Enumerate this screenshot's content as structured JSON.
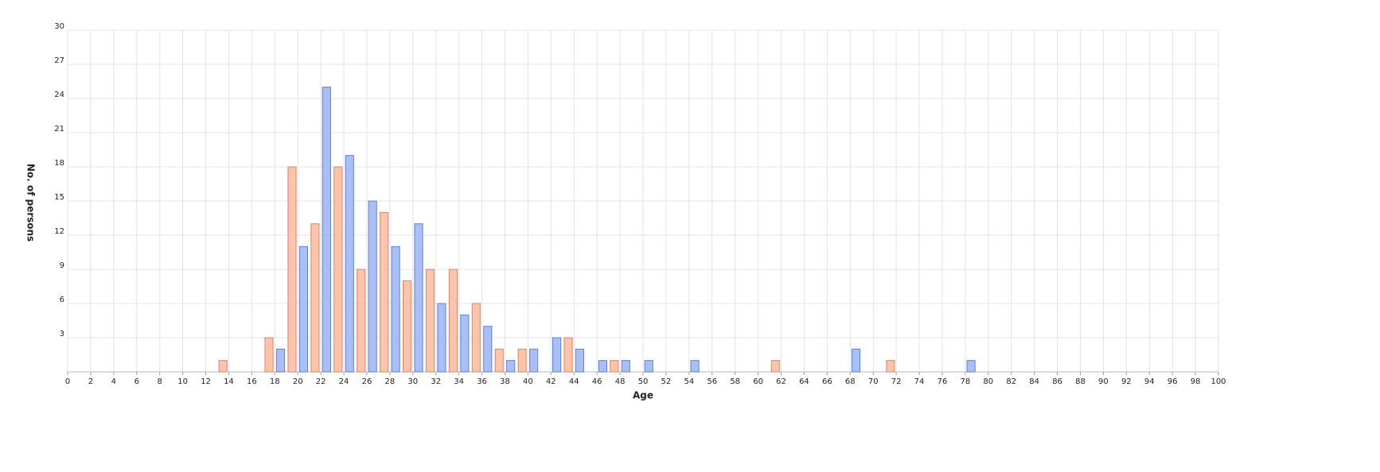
{
  "chart_data": {
    "type": "bar",
    "xlabel": "Age",
    "ylabel": "No. of persons",
    "xlim": [
      0,
      100
    ],
    "xticks": [
      0,
      2,
      4,
      6,
      8,
      10,
      12,
      14,
      16,
      18,
      20,
      22,
      24,
      26,
      28,
      30,
      32,
      34,
      36,
      38,
      40,
      42,
      44,
      46,
      48,
      50,
      52,
      54,
      56,
      58,
      60,
      62,
      64,
      66,
      68,
      70,
      72,
      74,
      76,
      78,
      80,
      82,
      84,
      86,
      88,
      90,
      92,
      94,
      96,
      98,
      100
    ],
    "ylim": [
      0,
      30
    ],
    "yticks": [
      3,
      6,
      9,
      12,
      15,
      18,
      21,
      24,
      27,
      30
    ],
    "grid": true,
    "series": [
      {
        "color": "#aabff5",
        "x": [
          18,
          20,
          22,
          24,
          26,
          28,
          30,
          32,
          34,
          36,
          38,
          40,
          42,
          44,
          46,
          48,
          50,
          54,
          68,
          78
        ],
        "values": [
          2,
          11,
          25,
          19,
          15,
          11,
          13,
          6,
          5,
          4,
          1,
          2,
          3,
          2,
          1,
          1,
          1,
          1,
          2,
          1
        ]
      },
      {
        "color": "#fcc4aa",
        "x": [
          13,
          17,
          19,
          21,
          23,
          25,
          27,
          29,
          31,
          33,
          35,
          37,
          39,
          43,
          47,
          61,
          71
        ],
        "values": [
          1,
          3,
          18,
          13,
          18,
          9,
          14,
          8,
          9,
          9,
          6,
          2,
          2,
          3,
          1,
          1,
          1
        ]
      }
    ]
  }
}
